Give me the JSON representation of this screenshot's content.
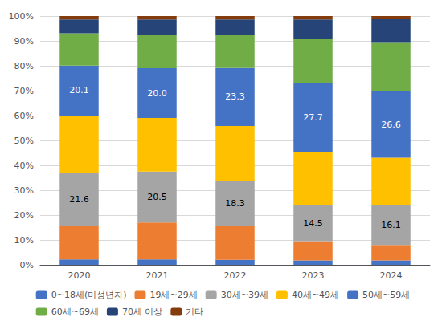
{
  "chart_data": {
    "type": "bar",
    "stacked": true,
    "categories": [
      "2020",
      "2021",
      "2022",
      "2023",
      "2024"
    ],
    "series": [
      {
        "name": "0~18세(미성년자)",
        "color": "#4472c4",
        "values": [
          2.2,
          2.2,
          2.0,
          1.8,
          1.8
        ]
      },
      {
        "name": "19세~29세",
        "color": "#ed7d31",
        "values": [
          13.3,
          14.8,
          13.5,
          7.7,
          6.2
        ]
      },
      {
        "name": "30세~39세",
        "color": "#a5a5a5",
        "values": [
          21.6,
          20.5,
          18.3,
          14.5,
          16.1
        ],
        "data_labels": true,
        "value_labels": [
          "21.6",
          "20.5",
          "18.3",
          "14.5",
          "16.1"
        ]
      },
      {
        "name": "40세~49세",
        "color": "#ffc000",
        "values": [
          22.9,
          21.5,
          22.0,
          21.3,
          19.0
        ]
      },
      {
        "name": "50세~59세",
        "color": "#4472c4",
        "values": [
          20.1,
          20.0,
          23.3,
          27.7,
          26.6
        ],
        "data_labels": true,
        "value_labels": [
          "20.1",
          "20.0",
          "23.3",
          "27.7",
          "26.6"
        ]
      },
      {
        "name": "60세~69세",
        "color": "#70ad47",
        "values": [
          13.0,
          13.5,
          13.2,
          17.7,
          19.8
        ]
      },
      {
        "name": "70세 이상",
        "color": "#264478",
        "values": [
          5.5,
          6.1,
          6.3,
          7.9,
          9.2
        ]
      },
      {
        "name": "기타",
        "color": "#843c0c",
        "values": [
          1.4,
          1.4,
          1.4,
          1.4,
          1.3
        ]
      }
    ],
    "ylim": [
      0,
      100
    ],
    "yticks": [
      {
        "value": 0,
        "label": "0%"
      },
      {
        "value": 10,
        "label": "10%"
      },
      {
        "value": 20,
        "label": "20%"
      },
      {
        "value": 30,
        "label": "30%"
      },
      {
        "value": 40,
        "label": "40%"
      },
      {
        "value": 50,
        "label": "50%"
      },
      {
        "value": 60,
        "label": "60%"
      },
      {
        "value": 70,
        "label": "70%"
      },
      {
        "value": 80,
        "label": "80%"
      },
      {
        "value": 90,
        "label": "90%"
      },
      {
        "value": 100,
        "label": "100%"
      }
    ],
    "grid": true,
    "legend": "bottom"
  }
}
